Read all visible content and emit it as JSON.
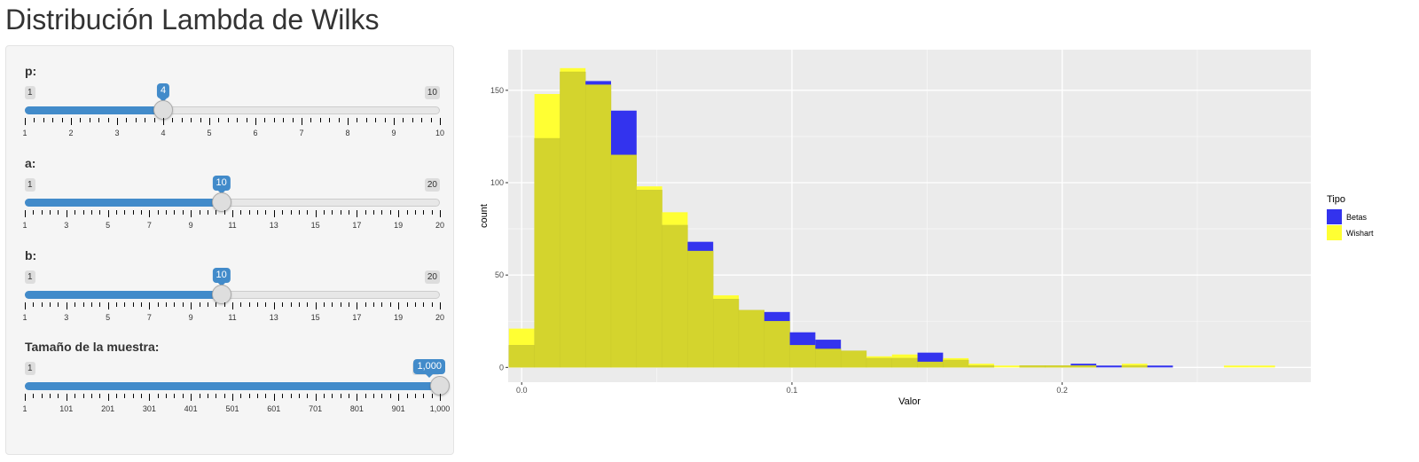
{
  "page": {
    "title": "Distribución Lambda de Wilks"
  },
  "sliders": [
    {
      "id": "p",
      "label": "p:",
      "min": 1,
      "max": 10,
      "value": 4,
      "min_label": "1",
      "max_label": "10",
      "value_label": "4",
      "ticks": [
        "1",
        "2",
        "3",
        "4",
        "5",
        "6",
        "7",
        "8",
        "9",
        "10"
      ],
      "minor_per_major": 4
    },
    {
      "id": "a",
      "label": "a:",
      "min": 1,
      "max": 20,
      "value": 10,
      "min_label": "1",
      "max_label": "20",
      "value_label": "10",
      "ticks": [
        "1",
        "3",
        "5",
        "7",
        "9",
        "11",
        "13",
        "15",
        "17",
        "19",
        "20"
      ],
      "minor_per_major": 4
    },
    {
      "id": "b",
      "label": "b:",
      "min": 1,
      "max": 20,
      "value": 10,
      "min_label": "1",
      "max_label": "20",
      "value_label": "10",
      "ticks": [
        "1",
        "3",
        "5",
        "7",
        "9",
        "11",
        "13",
        "15",
        "17",
        "19",
        "20"
      ],
      "minor_per_major": 4
    },
    {
      "id": "n",
      "label": "Tamaño de la muestra:",
      "min": 1,
      "max": 1000,
      "value": 1000,
      "min_label": "1",
      "max_label": "1,000",
      "value_label": "1,000",
      "ticks": [
        "1",
        "101",
        "201",
        "301",
        "401",
        "501",
        "601",
        "701",
        "801",
        "901",
        "1,000"
      ],
      "minor_per_major": 4
    }
  ],
  "chart_data": {
    "type": "bar",
    "subtype": "histogram",
    "xlabel": "Valor",
    "ylabel": "count",
    "xlim": [
      -0.005,
      0.292
    ],
    "ylim": [
      -8,
      172
    ],
    "x_ticks": [
      0.0,
      0.1,
      0.2
    ],
    "x_tick_labels": [
      "0.0",
      "0.1",
      "0.2"
    ],
    "y_ticks": [
      0,
      50,
      100,
      150
    ],
    "y_tick_labels": [
      "0",
      "50",
      "100",
      "150"
    ],
    "grid": true,
    "legend": {
      "title": "Tipo",
      "position": "right"
    },
    "bin_width": 0.00945,
    "bin_start": -0.00473,
    "series": [
      {
        "name": "Betas",
        "color": "#0000ff",
        "values": [
          12,
          124,
          160,
          155,
          139,
          96,
          77,
          68,
          37,
          31,
          30,
          19,
          15,
          9,
          5,
          5,
          8,
          4,
          1,
          0,
          1,
          1,
          2,
          1,
          1,
          1,
          0,
          0,
          0,
          0
        ]
      },
      {
        "name": "Wishart",
        "color": "#ffff00",
        "values": [
          21,
          148,
          162,
          153,
          115,
          98,
          84,
          63,
          39,
          31,
          25,
          12,
          10,
          9,
          6,
          7,
          3,
          5,
          2,
          1,
          1,
          1,
          1,
          0,
          2,
          0,
          0,
          0,
          1,
          1
        ]
      }
    ],
    "overlap_color": "#d4d42d",
    "panel_background": "#ebebeb"
  }
}
